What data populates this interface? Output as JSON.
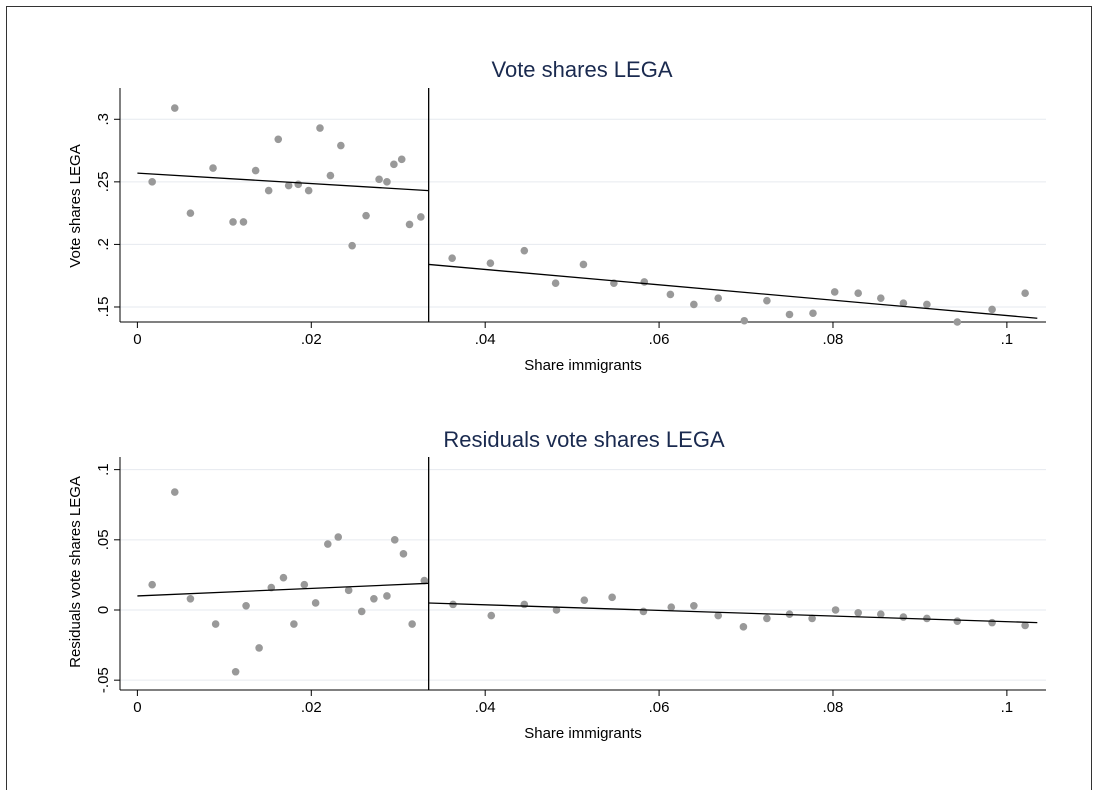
{
  "colors": {
    "point": "#999999",
    "line": "#000000",
    "grid": "#e6eaef",
    "title": "#1a2a4f"
  },
  "chart_data": [
    {
      "type": "scatter",
      "title": "Vote shares LEGA",
      "xlabel": "Share immigrants",
      "ylabel": "Vote shares LEGA",
      "xlim": [
        -0.002,
        0.1045
      ],
      "ylim": [
        0.138,
        0.325
      ],
      "xticks": [
        0,
        0.02,
        0.04,
        0.06,
        0.08,
        0.1
      ],
      "xtick_labels": [
        "0",
        ".02",
        ".04",
        ".06",
        ".08",
        ".1"
      ],
      "yticks": [
        0.15,
        0.2,
        0.25,
        0.3
      ],
      "ytick_labels": [
        ".15",
        ".2",
        ".25",
        ".3"
      ],
      "grid": true,
      "cutoff": 0.0335,
      "fit_lines": [
        {
          "x": [
            0,
            0.0335
          ],
          "y": [
            0.257,
            0.243
          ]
        },
        {
          "x": [
            0.0335,
            0.1035
          ],
          "y": [
            0.184,
            0.141
          ]
        }
      ],
      "points": [
        {
          "x": 0.0017,
          "y": 0.25
        },
        {
          "x": 0.0043,
          "y": 0.309
        },
        {
          "x": 0.0061,
          "y": 0.225
        },
        {
          "x": 0.0087,
          "y": 0.261
        },
        {
          "x": 0.011,
          "y": 0.218
        },
        {
          "x": 0.0122,
          "y": 0.218
        },
        {
          "x": 0.0136,
          "y": 0.259
        },
        {
          "x": 0.0151,
          "y": 0.243
        },
        {
          "x": 0.0162,
          "y": 0.284
        },
        {
          "x": 0.0174,
          "y": 0.247
        },
        {
          "x": 0.0185,
          "y": 0.248
        },
        {
          "x": 0.0197,
          "y": 0.243
        },
        {
          "x": 0.021,
          "y": 0.293
        },
        {
          "x": 0.0222,
          "y": 0.255
        },
        {
          "x": 0.0234,
          "y": 0.279
        },
        {
          "x": 0.0247,
          "y": 0.199
        },
        {
          "x": 0.0263,
          "y": 0.223
        },
        {
          "x": 0.0278,
          "y": 0.252
        },
        {
          "x": 0.0287,
          "y": 0.25
        },
        {
          "x": 0.0295,
          "y": 0.264
        },
        {
          "x": 0.0304,
          "y": 0.268
        },
        {
          "x": 0.0313,
          "y": 0.216
        },
        {
          "x": 0.0326,
          "y": 0.222
        },
        {
          "x": 0.0362,
          "y": 0.189
        },
        {
          "x": 0.0406,
          "y": 0.185
        },
        {
          "x": 0.0445,
          "y": 0.195
        },
        {
          "x": 0.0481,
          "y": 0.169
        },
        {
          "x": 0.0513,
          "y": 0.184
        },
        {
          "x": 0.0548,
          "y": 0.169
        },
        {
          "x": 0.0583,
          "y": 0.17
        },
        {
          "x": 0.0613,
          "y": 0.16
        },
        {
          "x": 0.064,
          "y": 0.152
        },
        {
          "x": 0.0668,
          "y": 0.157
        },
        {
          "x": 0.0698,
          "y": 0.139
        },
        {
          "x": 0.0724,
          "y": 0.155
        },
        {
          "x": 0.075,
          "y": 0.144
        },
        {
          "x": 0.0777,
          "y": 0.145
        },
        {
          "x": 0.0802,
          "y": 0.162
        },
        {
          "x": 0.0829,
          "y": 0.161
        },
        {
          "x": 0.0855,
          "y": 0.157
        },
        {
          "x": 0.0881,
          "y": 0.153
        },
        {
          "x": 0.0908,
          "y": 0.152
        },
        {
          "x": 0.0943,
          "y": 0.138
        },
        {
          "x": 0.0983,
          "y": 0.148
        },
        {
          "x": 0.1021,
          "y": 0.161
        }
      ]
    },
    {
      "type": "scatter",
      "title": "Residuals vote shares LEGA",
      "xlabel": "Share immigrants",
      "ylabel": "Residuals vote shares LEGA",
      "xlim": [
        -0.002,
        0.1045
      ],
      "ylim": [
        -0.057,
        0.109
      ],
      "xticks": [
        0,
        0.02,
        0.04,
        0.06,
        0.08,
        0.1
      ],
      "xtick_labels": [
        "0",
        ".02",
        ".04",
        ".06",
        ".08",
        ".1"
      ],
      "yticks": [
        -0.05,
        0,
        0.05,
        0.1
      ],
      "ytick_labels": [
        "-.05",
        "0",
        ".05",
        ".1"
      ],
      "grid": true,
      "cutoff": 0.0335,
      "fit_lines": [
        {
          "x": [
            0,
            0.0335
          ],
          "y": [
            0.01,
            0.019
          ]
        },
        {
          "x": [
            0.0335,
            0.1035
          ],
          "y": [
            0.005,
            -0.009
          ]
        }
      ],
      "points": [
        {
          "x": 0.0017,
          "y": 0.018
        },
        {
          "x": 0.0043,
          "y": 0.084
        },
        {
          "x": 0.0061,
          "y": 0.008
        },
        {
          "x": 0.009,
          "y": -0.01
        },
        {
          "x": 0.0113,
          "y": -0.044
        },
        {
          "x": 0.0125,
          "y": 0.003
        },
        {
          "x": 0.014,
          "y": -0.027
        },
        {
          "x": 0.0154,
          "y": 0.016
        },
        {
          "x": 0.0168,
          "y": 0.023
        },
        {
          "x": 0.018,
          "y": -0.01
        },
        {
          "x": 0.0192,
          "y": 0.018
        },
        {
          "x": 0.0205,
          "y": 0.005
        },
        {
          "x": 0.0219,
          "y": 0.047
        },
        {
          "x": 0.0231,
          "y": 0.052
        },
        {
          "x": 0.0243,
          "y": 0.014
        },
        {
          "x": 0.0258,
          "y": -0.001
        },
        {
          "x": 0.0272,
          "y": 0.008
        },
        {
          "x": 0.0287,
          "y": 0.01
        },
        {
          "x": 0.0296,
          "y": 0.05
        },
        {
          "x": 0.0306,
          "y": 0.04
        },
        {
          "x": 0.0316,
          "y": -0.01
        },
        {
          "x": 0.033,
          "y": 0.021
        },
        {
          "x": 0.0363,
          "y": 0.004
        },
        {
          "x": 0.0407,
          "y": -0.004
        },
        {
          "x": 0.0445,
          "y": 0.004
        },
        {
          "x": 0.0482,
          "y": 0.0
        },
        {
          "x": 0.0514,
          "y": 0.007
        },
        {
          "x": 0.0546,
          "y": 0.009
        },
        {
          "x": 0.0582,
          "y": -0.001
        },
        {
          "x": 0.0614,
          "y": 0.002
        },
        {
          "x": 0.064,
          "y": 0.003
        },
        {
          "x": 0.0668,
          "y": -0.004
        },
        {
          "x": 0.0697,
          "y": -0.012
        },
        {
          "x": 0.0724,
          "y": -0.006
        },
        {
          "x": 0.075,
          "y": -0.003
        },
        {
          "x": 0.0776,
          "y": -0.006
        },
        {
          "x": 0.0803,
          "y": 0.0
        },
        {
          "x": 0.0829,
          "y": -0.002
        },
        {
          "x": 0.0855,
          "y": -0.003
        },
        {
          "x": 0.0881,
          "y": -0.005
        },
        {
          "x": 0.0908,
          "y": -0.006
        },
        {
          "x": 0.0943,
          "y": -0.008
        },
        {
          "x": 0.0983,
          "y": -0.009
        },
        {
          "x": 0.1021,
          "y": -0.011
        }
      ]
    }
  ]
}
